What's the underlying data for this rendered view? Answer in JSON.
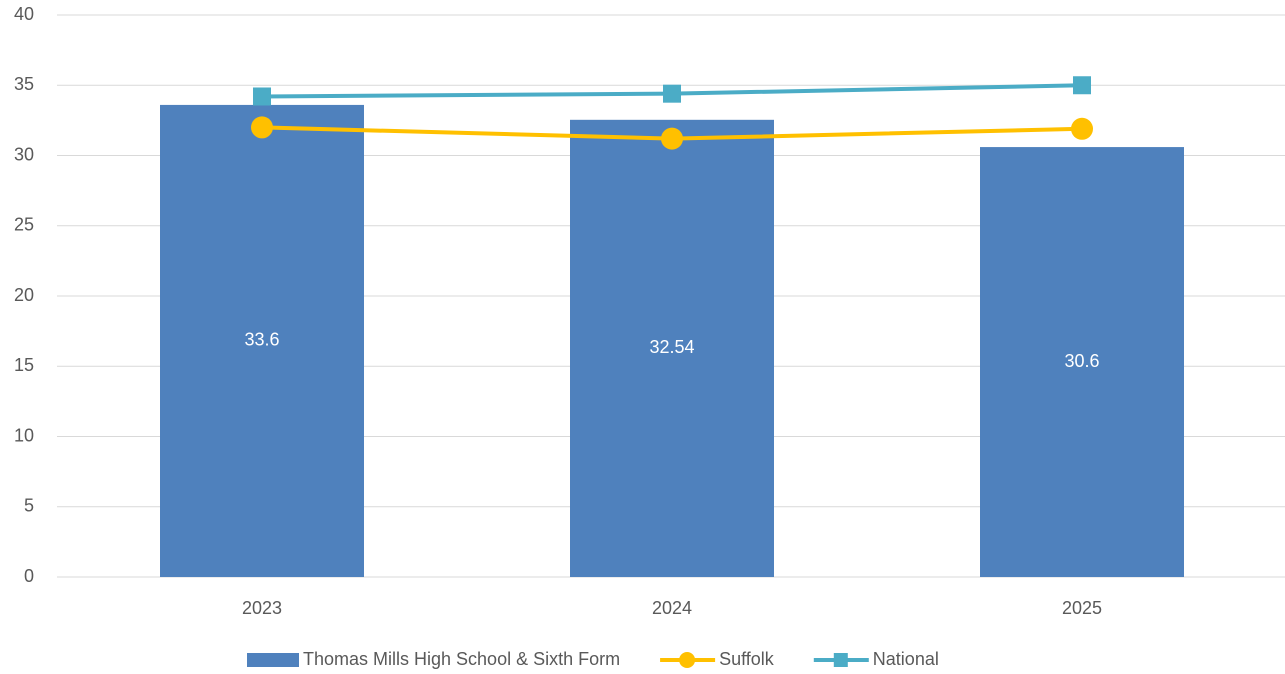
{
  "chart_data": {
    "type": "bar",
    "categories": [
      "2023",
      "2024",
      "2025"
    ],
    "series": [
      {
        "name": "Thomas Mills High School & Sixth Form",
        "type": "bar",
        "color": "#4f81bd",
        "values": [
          33.6,
          32.54,
          30.6
        ]
      },
      {
        "name": "Suffolk",
        "type": "line",
        "marker": "circle",
        "color": "#ffc000",
        "values": [
          32.0,
          31.2,
          31.9
        ]
      },
      {
        "name": "National",
        "type": "line",
        "marker": "square",
        "color": "#4bacc6",
        "values": [
          34.2,
          34.4,
          35.0
        ]
      }
    ],
    "ylim": [
      0,
      40
    ],
    "yticks": [
      0,
      5,
      10,
      15,
      20,
      25,
      30,
      35,
      40
    ],
    "grid": true,
    "legend": "bottom"
  }
}
